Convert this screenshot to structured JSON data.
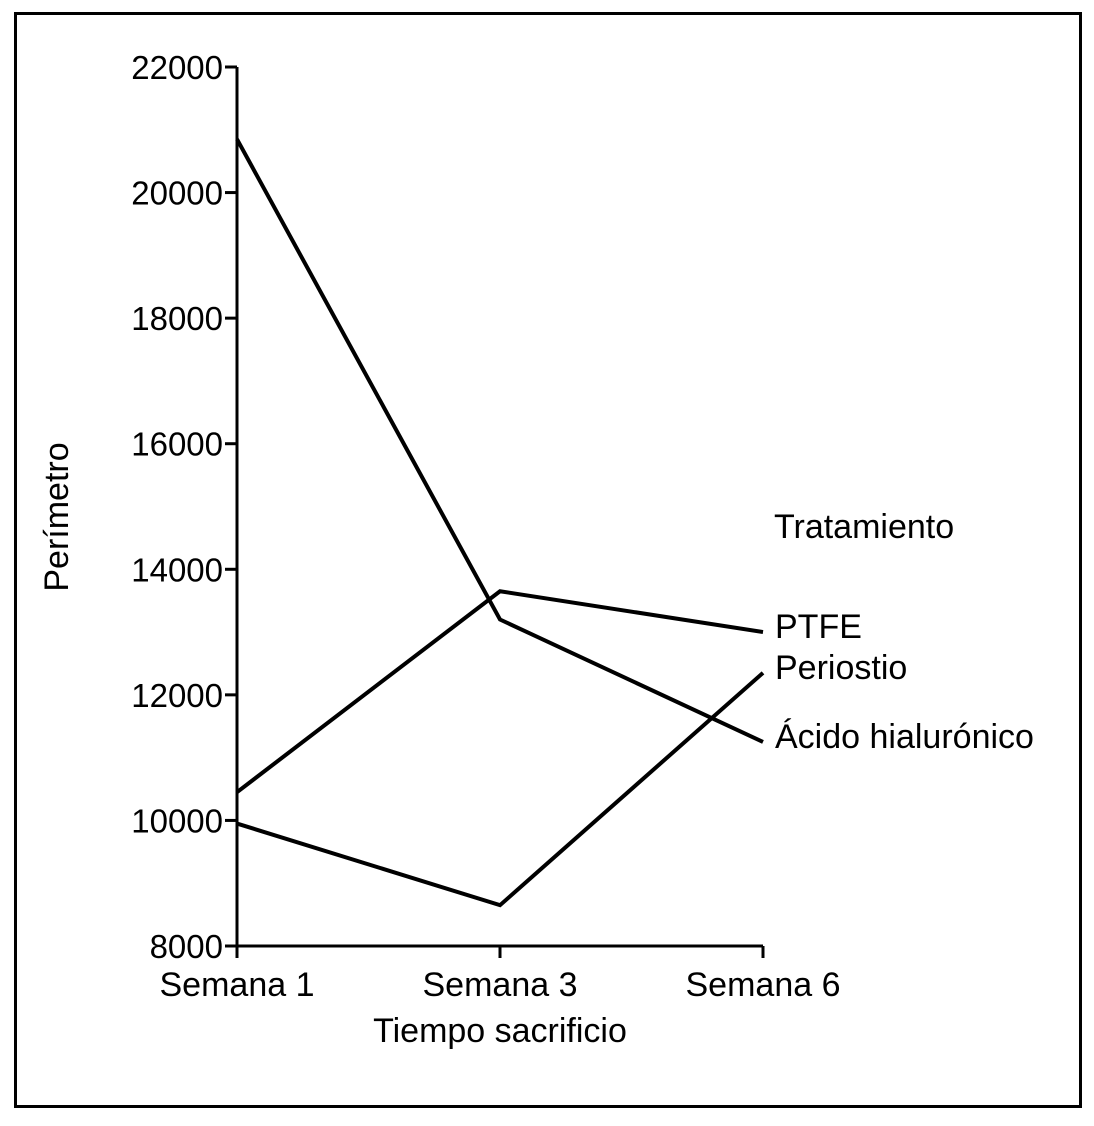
{
  "chart_data": {
    "type": "line",
    "title": "",
    "xlabel": "Tiempo sacrificio",
    "ylabel": "Perímetro",
    "categories": [
      "Semana 1",
      "Semana 3",
      "Semana 6"
    ],
    "ylim": [
      8000,
      22000
    ],
    "yticks": [
      8000,
      10000,
      12000,
      14000,
      16000,
      18000,
      20000,
      22000
    ],
    "ytick_labels": [
      "8000",
      "10000",
      "12000",
      "14000",
      "16000",
      "18000",
      "20000",
      "22000"
    ],
    "legend_title": "Tratamiento",
    "legend_placement": "right",
    "grid": false,
    "line_color": "#000000",
    "series": [
      {
        "name": "PTFE",
        "values": [
          10450,
          13650,
          13000
        ]
      },
      {
        "name": "Periostio",
        "values": [
          9950,
          8650,
          12350
        ]
      },
      {
        "name": "Ácido hialurónico",
        "values": [
          20850,
          13200,
          11250
        ]
      }
    ]
  }
}
